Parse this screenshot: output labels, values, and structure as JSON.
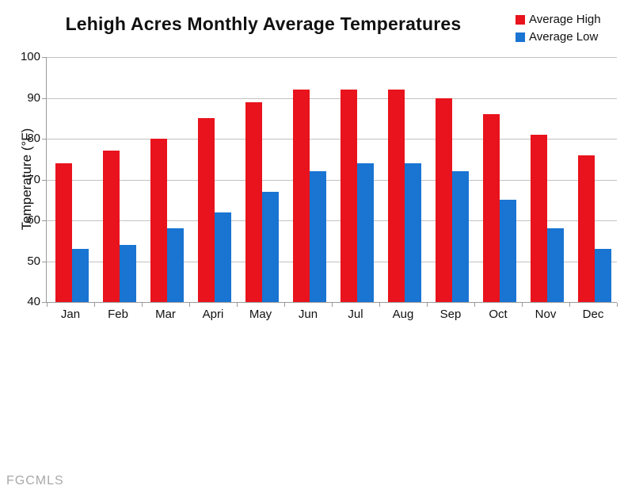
{
  "title": "Lehigh Acres Monthly Average Temperatures",
  "watermark": "FGCMLS",
  "legend": {
    "items": [
      {
        "label": "Average High",
        "color": "#e8131c"
      },
      {
        "label": "Average Low",
        "color": "#1974d2"
      }
    ]
  },
  "chart_data": {
    "type": "bar",
    "title": "Lehigh Acres Monthly Average Temperatures",
    "categories": [
      "Jan",
      "Feb",
      "Mar",
      "Apri",
      "May",
      "Jun",
      "Jul",
      "Aug",
      "Sep",
      "Oct",
      "Nov",
      "Dec"
    ],
    "series": [
      {
        "name": "Average High",
        "color": "#e8131c",
        "values": [
          74,
          77,
          80,
          85,
          89,
          92,
          92,
          92,
          90,
          86,
          81,
          76
        ]
      },
      {
        "name": "Average Low",
        "color": "#1974d2",
        "values": [
          53,
          54,
          58,
          62,
          67,
          72,
          74,
          74,
          72,
          65,
          58,
          53
        ]
      }
    ],
    "xlabel": "",
    "ylabel": "Temperature (°F)",
    "ylim": [
      40,
      100
    ],
    "yticks": [
      40,
      50,
      60,
      70,
      80,
      90,
      100
    ],
    "grid": true,
    "legend_position": "top-right"
  }
}
